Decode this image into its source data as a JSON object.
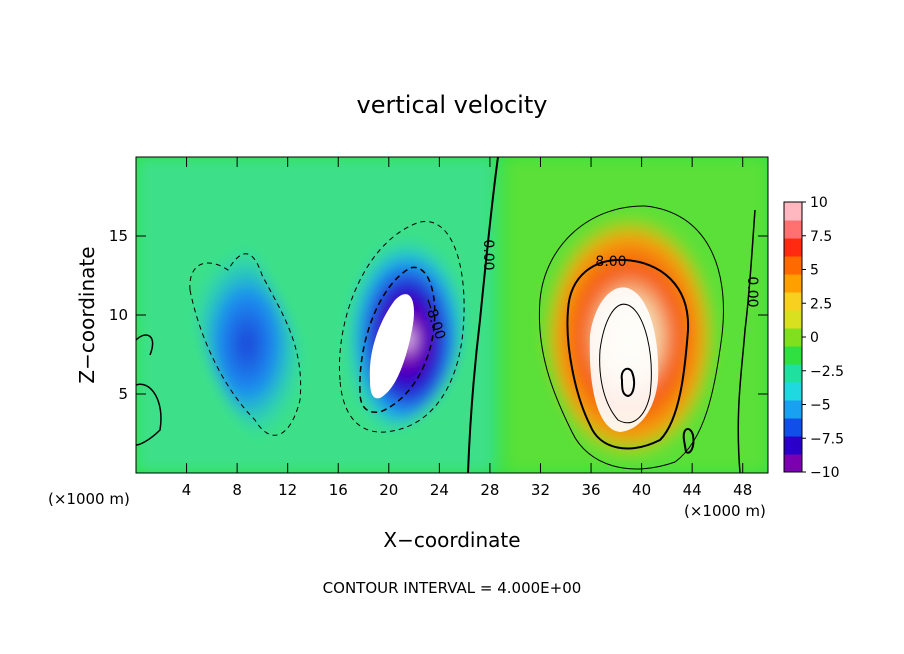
{
  "chart_data": {
    "type": "heatmap",
    "title": "vertical velocity",
    "xlabel": "X−coordinate",
    "ylabel": "Z−coordinate",
    "x_unit_left": "(×1000 m)",
    "x_unit_right": "(×1000 m)",
    "footer": "CONTOUR INTERVAL = 4.000E+00",
    "xlim": [
      0,
      50
    ],
    "ylim": [
      0,
      20
    ],
    "x_ticks": [
      4,
      8,
      12,
      16,
      20,
      24,
      28,
      32,
      36,
      40,
      44,
      48
    ],
    "x_tick_labels": [
      "4",
      "8",
      "12",
      "16",
      "20",
      "24",
      "28",
      "32",
      "36",
      "40",
      "44",
      "48"
    ],
    "y_ticks": [
      5,
      10,
      15
    ],
    "y_tick_labels": [
      "5",
      "10",
      "15"
    ],
    "colorbar": {
      "range": [
        -10,
        10
      ],
      "ticks": [
        10,
        7.5,
        5,
        2.5,
        0,
        -2.5,
        -5,
        -7.5,
        -10
      ],
      "tick_labels": [
        "10",
        "7.5",
        "5",
        "2.5",
        "0",
        "−2.5",
        "−5",
        "−7.5",
        "−10"
      ],
      "colors": [
        "#7a00b0",
        "#2a00c8",
        "#1050e8",
        "#1aa0f0",
        "#20d8e0",
        "#20e0a0",
        "#30e040",
        "#80e020",
        "#d8e020",
        "#f8d020",
        "#ffa000",
        "#ff6a00",
        "#ff2a10",
        "#ff7070",
        "#ffb8c0"
      ]
    },
    "contour_labels": [
      "0.00",
      "0.00",
      "−8.00",
      "8.00"
    ],
    "features": [
      {
        "sign": "negative",
        "x_center": 21,
        "z_center": 8,
        "min": -10
      },
      {
        "sign": "negative",
        "x_center": 10,
        "z_center": 8,
        "min": -6
      },
      {
        "sign": "positive",
        "x_center": 38.5,
        "z_center": 8,
        "max": 10
      }
    ]
  }
}
